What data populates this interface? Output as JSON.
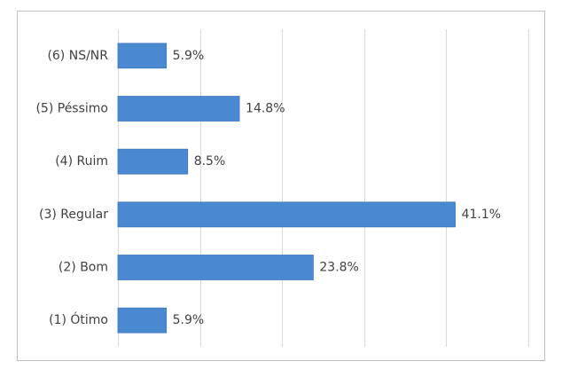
{
  "chart_data": {
    "type": "barh",
    "categories": [
      "(6) NS/NR",
      "(5) Péssimo",
      "(4) Ruim",
      "(3) Regular",
      "(2) Bom",
      "(1) Ótimo"
    ],
    "values": [
      5.9,
      14.8,
      8.5,
      41.1,
      23.8,
      5.9
    ],
    "value_labels": [
      "5.9%",
      "14.8%",
      "8.5%",
      "41.1%",
      "23.8%",
      "5.9%"
    ],
    "color": "#4a89d2",
    "xlim": [
      0,
      50
    ],
    "xticks": [
      0,
      10,
      20,
      30,
      40,
      50
    ],
    "grid": true
  }
}
